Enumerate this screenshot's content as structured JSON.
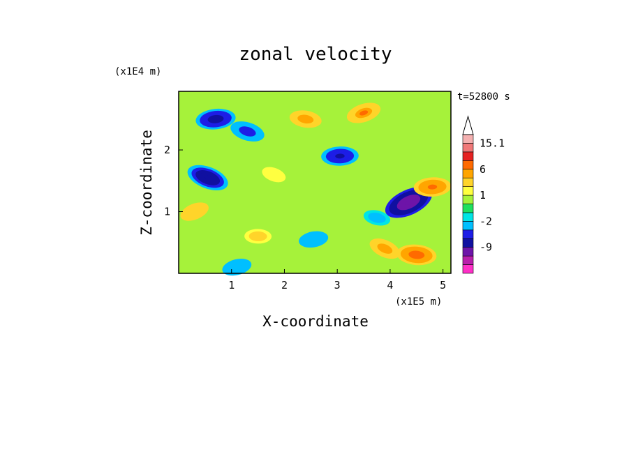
{
  "chart_data": {
    "type": "heatmap",
    "title": "zonal velocity",
    "xlabel": "X-coordinate",
    "ylabel": "Z-coordinate",
    "x_scale_label": "(x1E5 m)",
    "y_scale_label": "(x1E4 m)",
    "time_label": "t=52800 s",
    "xlim": [
      0,
      5.15
    ],
    "ylim": [
      0,
      2.95
    ],
    "x_ticks": [
      "1",
      "2",
      "3",
      "4",
      "5"
    ],
    "y_ticks": [
      "1",
      "2"
    ],
    "x_tick_values": [
      1,
      2,
      3,
      4,
      5
    ],
    "y_tick_values": [
      1,
      2
    ],
    "colorbar": {
      "labels": [
        "15.1",
        "6",
        "1",
        "-2",
        "-9"
      ],
      "label_values": [
        15.1,
        6,
        1,
        -2,
        -9
      ],
      "levels": [
        -15,
        -12,
        -9,
        -6,
        -4,
        -2,
        -1,
        0,
        1,
        2,
        4,
        6,
        9,
        12,
        15.1
      ],
      "colors": [
        "#ff2fc7",
        "#b91eab",
        "#6d14a8",
        "#1010a0",
        "#1d1de6",
        "#00bfff",
        "#00e5e5",
        "#1fe05e",
        "#a6f23a",
        "#ffff40",
        "#ffd42a",
        "#ffa500",
        "#ff6a00",
        "#e52222",
        "#f07878",
        "#f4b0b0"
      ]
    },
    "field_features": [
      {
        "x": 4.35,
        "z": 1.15,
        "value": -12
      },
      {
        "x": 3.05,
        "z": 1.9,
        "value": -7
      },
      {
        "x": 0.55,
        "z": 1.55,
        "value": -9
      },
      {
        "x": 0.7,
        "z": 2.5,
        "value": -8
      },
      {
        "x": 1.3,
        "z": 2.3,
        "value": -6
      },
      {
        "x": 2.55,
        "z": 0.55,
        "value": -4
      },
      {
        "x": 3.75,
        "z": 0.9,
        "value": -3
      },
      {
        "x": 1.1,
        "z": 0.1,
        "value": -4
      },
      {
        "x": 2.4,
        "z": 2.5,
        "value": 5
      },
      {
        "x": 3.5,
        "z": 2.6,
        "value": 6
      },
      {
        "x": 4.5,
        "z": 0.3,
        "value": 8
      },
      {
        "x": 0.3,
        "z": 1.0,
        "value": 4
      },
      {
        "x": 1.5,
        "z": 0.6,
        "value": 3
      },
      {
        "x": 3.9,
        "z": 0.4,
        "value": 5
      },
      {
        "x": 4.8,
        "z": 1.4,
        "value": 7
      },
      {
        "x": 1.8,
        "z": 1.6,
        "value": 2
      }
    ]
  }
}
